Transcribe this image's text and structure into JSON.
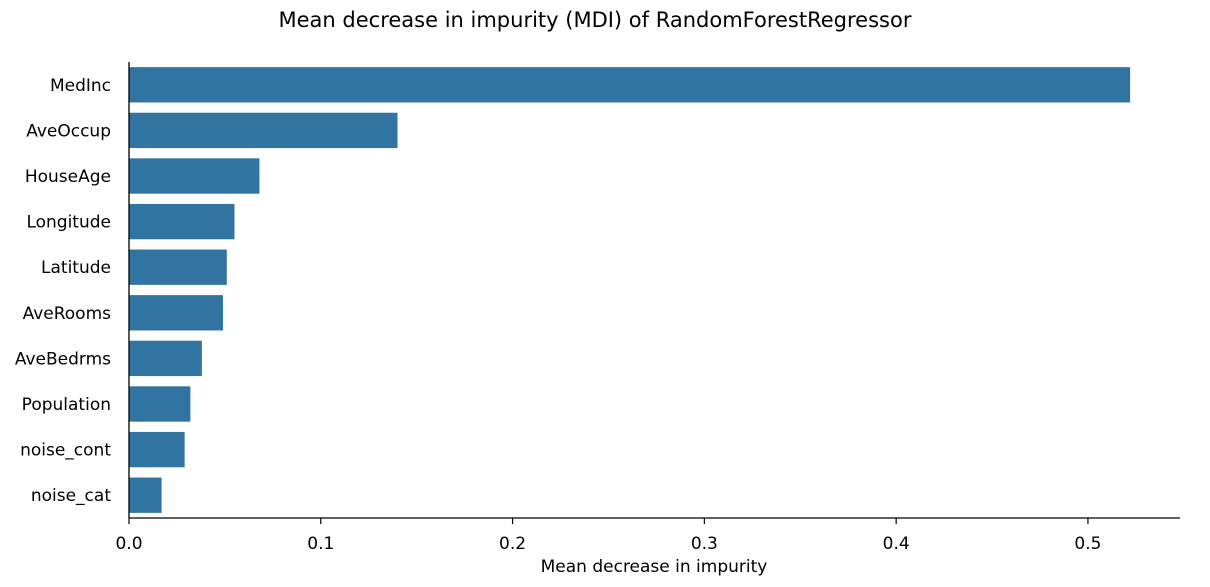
{
  "chart_data": {
    "type": "bar",
    "orientation": "horizontal",
    "title": "Mean decrease in impurity (MDI) of RandomForestRegressor",
    "xlabel": "Mean decrease in impurity",
    "ylabel": "",
    "categories": [
      "MedInc",
      "AveOccup",
      "HouseAge",
      "Longitude",
      "Latitude",
      "AveRooms",
      "AveBedrms",
      "Population",
      "noise_cont",
      "noise_cat"
    ],
    "values": [
      0.522,
      0.14,
      0.068,
      0.055,
      0.051,
      0.049,
      0.038,
      0.032,
      0.029,
      0.017
    ],
    "xlim": [
      0,
      0.548
    ],
    "xticks": [
      0.0,
      0.1,
      0.2,
      0.3,
      0.4,
      0.5
    ],
    "xtick_labels": [
      "0.0",
      "0.1",
      "0.2",
      "0.3",
      "0.4",
      "0.5"
    ],
    "grid": false,
    "bar_color": "#3274a1"
  }
}
